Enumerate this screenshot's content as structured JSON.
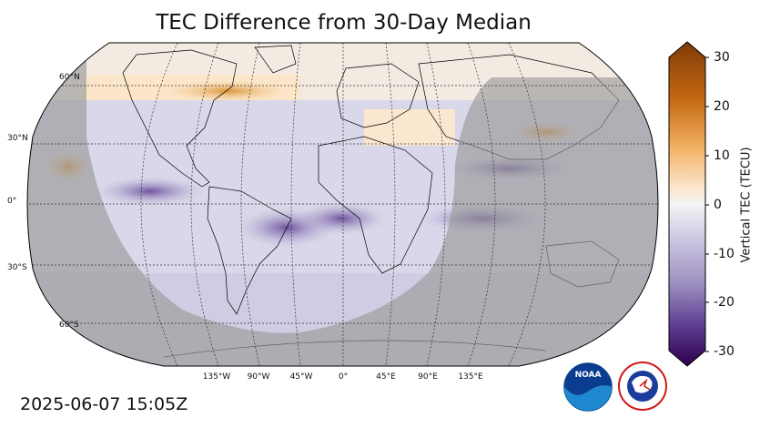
{
  "title": "TEC Difference from 30-Day Median",
  "timestamp": "2025-06-07 15:05Z",
  "map": {
    "projection": "robinson",
    "lat_labels": [
      "60°N",
      "30°N",
      "0°",
      "30°S",
      "60°S"
    ],
    "lon_labels": [
      "135°W",
      "90°W",
      "45°W",
      "0°",
      "45°E",
      "90°E",
      "135°E"
    ],
    "gridlines": true,
    "night_shading": true,
    "colors": {
      "night_overlay": "#9a9a9a",
      "coastline": "#000000"
    }
  },
  "colorbar": {
    "label": "Vertical TEC (TECU)",
    "ticks": [
      "30",
      "20",
      "10",
      "0",
      "-10",
      "-20",
      "-30"
    ],
    "range": [
      -30,
      30
    ],
    "colors": {
      "max": "#7f3b08",
      "mid": "#f7f7f7",
      "min": "#2d004b"
    }
  },
  "logos": {
    "noaa": {
      "text": "NOAA",
      "icon": "noaa-logo"
    },
    "nws": {
      "text": "NATIONAL WEATHER SERVICE",
      "icon": "nws-logo"
    }
  }
}
